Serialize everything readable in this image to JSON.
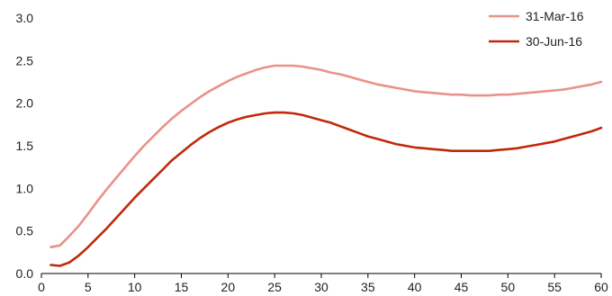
{
  "chart_data": {
    "type": "line",
    "xlim": [
      0,
      60
    ],
    "ylim": [
      0,
      3
    ],
    "x_ticks": [
      "0",
      "5",
      "10",
      "15",
      "20",
      "25",
      "30",
      "35",
      "40",
      "45",
      "50",
      "55",
      "60"
    ],
    "y_ticks": [
      "0.0",
      "0.5",
      "1.0",
      "1.5",
      "2.0",
      "2.5",
      "3.0"
    ],
    "grid": false,
    "legend_position": "top-right",
    "series": [
      {
        "name": "31-Mar-16",
        "color": "#e8928b",
        "x": [
          1,
          2,
          3,
          4,
          5,
          6,
          7,
          8,
          9,
          10,
          11,
          12,
          13,
          14,
          15,
          16,
          17,
          18,
          19,
          20,
          21,
          22,
          23,
          24,
          25,
          26,
          27,
          28,
          29,
          30,
          31,
          32,
          33,
          34,
          35,
          36,
          37,
          38,
          39,
          40,
          41,
          42,
          43,
          44,
          45,
          46,
          47,
          48,
          49,
          50,
          51,
          52,
          53,
          54,
          55,
          56,
          57,
          58,
          59,
          60
        ],
        "y": [
          0.31,
          0.33,
          0.44,
          0.56,
          0.7,
          0.85,
          0.99,
          1.12,
          1.25,
          1.38,
          1.5,
          1.61,
          1.72,
          1.82,
          1.91,
          1.99,
          2.07,
          2.14,
          2.2,
          2.26,
          2.31,
          2.35,
          2.39,
          2.42,
          2.44,
          2.44,
          2.44,
          2.43,
          2.41,
          2.39,
          2.36,
          2.34,
          2.31,
          2.28,
          2.25,
          2.22,
          2.2,
          2.18,
          2.16,
          2.14,
          2.13,
          2.12,
          2.11,
          2.1,
          2.1,
          2.09,
          2.09,
          2.09,
          2.1,
          2.1,
          2.11,
          2.12,
          2.13,
          2.14,
          2.15,
          2.16,
          2.18,
          2.2,
          2.22,
          2.25
        ]
      },
      {
        "name": "30-Jun-16",
        "color": "#c0290a",
        "x": [
          1,
          2,
          3,
          4,
          5,
          6,
          7,
          8,
          9,
          10,
          11,
          12,
          13,
          14,
          15,
          16,
          17,
          18,
          19,
          20,
          21,
          22,
          23,
          24,
          25,
          26,
          27,
          28,
          29,
          30,
          31,
          32,
          33,
          34,
          35,
          36,
          37,
          38,
          39,
          40,
          41,
          42,
          43,
          44,
          45,
          46,
          47,
          48,
          49,
          50,
          51,
          52,
          53,
          54,
          55,
          56,
          57,
          58,
          59,
          60
        ],
        "y": [
          0.1,
          0.09,
          0.13,
          0.21,
          0.31,
          0.42,
          0.53,
          0.65,
          0.77,
          0.89,
          1.0,
          1.11,
          1.22,
          1.33,
          1.42,
          1.51,
          1.59,
          1.66,
          1.72,
          1.77,
          1.81,
          1.84,
          1.86,
          1.88,
          1.89,
          1.89,
          1.88,
          1.86,
          1.83,
          1.8,
          1.77,
          1.73,
          1.69,
          1.65,
          1.61,
          1.58,
          1.55,
          1.52,
          1.5,
          1.48,
          1.47,
          1.46,
          1.45,
          1.44,
          1.44,
          1.44,
          1.44,
          1.44,
          1.45,
          1.46,
          1.47,
          1.49,
          1.51,
          1.53,
          1.55,
          1.58,
          1.61,
          1.64,
          1.67,
          1.71
        ]
      }
    ]
  }
}
